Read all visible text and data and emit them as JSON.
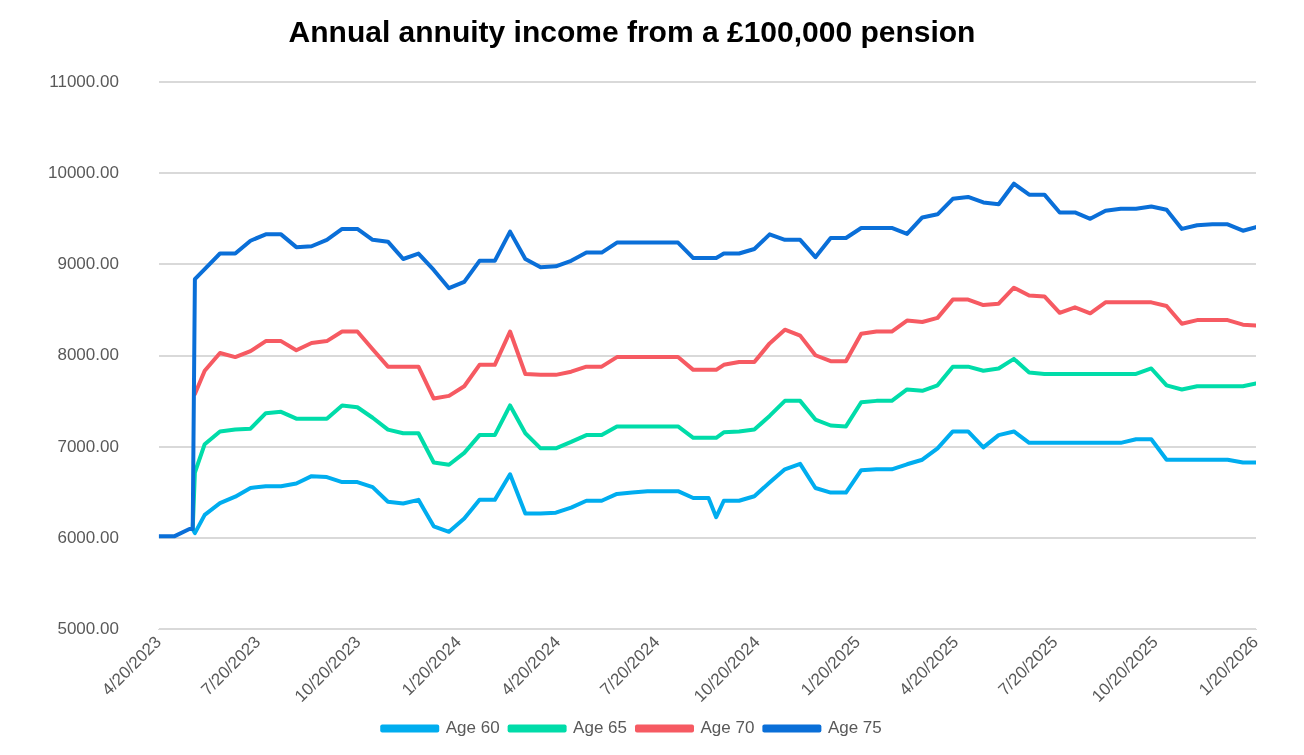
{
  "chart_data": {
    "type": "line",
    "title": "Annual annuity income from a £100,000 pension",
    "x": [
      "2023-04-20",
      "2023-05-04",
      "2023-05-18",
      "2023-05-21",
      "2023-05-23",
      "2023-06-01",
      "2023-06-15",
      "2023-06-29",
      "2023-07-13",
      "2023-07-27",
      "2023-08-10",
      "2023-08-24",
      "2023-09-07",
      "2023-09-21",
      "2023-10-05",
      "2023-10-19",
      "2023-11-02",
      "2023-11-16",
      "2023-11-30",
      "2023-12-14",
      "2023-12-28",
      "2024-01-11",
      "2024-01-25",
      "2024-02-08",
      "2024-02-22",
      "2024-03-07",
      "2024-03-21",
      "2024-04-04",
      "2024-04-18",
      "2024-05-02",
      "2024-05-16",
      "2024-05-30",
      "2024-06-13",
      "2024-06-27",
      "2024-07-11",
      "2024-07-25",
      "2024-08-08",
      "2024-08-22",
      "2024-09-05",
      "2024-09-12",
      "2024-09-19",
      "2024-10-03",
      "2024-10-17",
      "2024-10-31",
      "2024-11-14",
      "2024-11-28",
      "2024-12-12",
      "2024-12-26",
      "2025-01-09",
      "2025-01-23",
      "2025-02-06",
      "2025-02-20",
      "2025-03-06",
      "2025-03-20",
      "2025-04-03",
      "2025-04-17",
      "2025-05-01",
      "2025-05-15",
      "2025-05-29",
      "2025-06-12",
      "2025-06-26",
      "2025-07-10",
      "2025-07-24",
      "2025-08-07",
      "2025-08-21",
      "2025-09-04",
      "2025-09-18",
      "2025-10-02",
      "2025-10-16",
      "2025-10-30",
      "2025-11-13",
      "2025-11-27",
      "2025-12-11",
      "2025-12-25",
      "2026-01-08",
      "2026-01-20"
    ],
    "series": [
      {
        "name": "Age 60",
        "color": "#00adef",
        "values": [
          null,
          null,
          null,
          6100,
          6055,
          6255,
          6385,
          6455,
          6550,
          6570,
          6570,
          6600,
          6680,
          6670,
          6615,
          6615,
          6560,
          6400,
          6380,
          6420,
          6130,
          6070,
          6215,
          6420,
          6420,
          6700,
          6270,
          6270,
          6280,
          6335,
          6410,
          6410,
          6485,
          6500,
          6515,
          6515,
          6515,
          6440,
          6440,
          6230,
          6410,
          6410,
          6460,
          6610,
          6755,
          6815,
          6550,
          6500,
          6500,
          6745,
          6755,
          6755,
          6810,
          6860,
          6985,
          7170,
          7170,
          6995,
          7130,
          7170,
          7045,
          7045,
          7045,
          7045,
          7045,
          7045,
          7045,
          7085,
          7085,
          6860,
          6860,
          6860,
          6860,
          6860,
          6830,
          6830
        ]
      },
      {
        "name": "Age 65",
        "color": "#00dca9",
        "values": [
          null,
          null,
          null,
          6100,
          6720,
          7030,
          7170,
          7190,
          7200,
          7370,
          7385,
          7310,
          7310,
          7310,
          7455,
          7435,
          7320,
          7190,
          7150,
          7150,
          6830,
          6805,
          6935,
          7130,
          7130,
          7455,
          7150,
          6985,
          6985,
          7055,
          7130,
          7130,
          7225,
          7225,
          7225,
          7225,
          7225,
          7100,
          7100,
          7100,
          7160,
          7170,
          7190,
          7340,
          7505,
          7505,
          7300,
          7235,
          7225,
          7490,
          7505,
          7505,
          7630,
          7615,
          7675,
          7880,
          7880,
          7835,
          7860,
          7965,
          7815,
          7800,
          7800,
          7800,
          7800,
          7800,
          7800,
          7800,
          7860,
          7675,
          7630,
          7665,
          7665,
          7665,
          7665,
          7695
        ]
      },
      {
        "name": "Age 70",
        "color": "#f65a62",
        "values": [
          null,
          null,
          null,
          null,
          7580,
          7835,
          8030,
          7985,
          8050,
          8160,
          8160,
          8060,
          8140,
          8160,
          8265,
          8265,
          8070,
          7880,
          7880,
          7880,
          7530,
          7560,
          7665,
          7900,
          7900,
          8265,
          7800,
          7790,
          7790,
          7825,
          7880,
          7880,
          7985,
          7985,
          7985,
          7985,
          7985,
          7845,
          7845,
          7845,
          7900,
          7930,
          7930,
          8135,
          8285,
          8220,
          8005,
          7940,
          7940,
          8240,
          8265,
          8265,
          8385,
          8370,
          8415,
          8615,
          8615,
          8555,
          8570,
          8745,
          8660,
          8650,
          8470,
          8530,
          8465,
          8585,
          8585,
          8585,
          8585,
          8545,
          8350,
          8390,
          8390,
          8390,
          8340,
          8330
        ]
      },
      {
        "name": "Age 75",
        "color": "#0a6fd8",
        "values": [
          6020,
          6020,
          6100,
          6100,
          8840,
          8950,
          9120,
          9120,
          9260,
          9330,
          9330,
          9190,
          9200,
          9270,
          9390,
          9390,
          9270,
          9250,
          9060,
          9120,
          8940,
          8740,
          8810,
          9040,
          9040,
          9360,
          9060,
          8970,
          8980,
          9040,
          9130,
          9130,
          9240,
          9240,
          9240,
          9240,
          9240,
          9070,
          9070,
          9070,
          9120,
          9120,
          9170,
          9330,
          9270,
          9270,
          9080,
          9290,
          9290,
          9400,
          9400,
          9400,
          9335,
          9515,
          9550,
          9720,
          9740,
          9680,
          9660,
          9885,
          9765,
          9765,
          9570,
          9570,
          9500,
          9590,
          9610,
          9610,
          9635,
          9600,
          9390,
          9430,
          9440,
          9440,
          9370,
          9410
        ]
      }
    ],
    "xlim": [
      "2023-04-20",
      "2026-01-20"
    ],
    "xticks": [
      {
        "value": "2023-04-20",
        "label": "4/20/2023"
      },
      {
        "value": "2023-07-20",
        "label": "7/20/2023"
      },
      {
        "value": "2023-10-20",
        "label": "10/20/2023"
      },
      {
        "value": "2024-01-20",
        "label": "1/20/2024"
      },
      {
        "value": "2024-04-20",
        "label": "4/20/2024"
      },
      {
        "value": "2024-07-20",
        "label": "7/20/2024"
      },
      {
        "value": "2024-10-20",
        "label": "10/20/2024"
      },
      {
        "value": "2025-01-20",
        "label": "1/20/2025"
      },
      {
        "value": "2025-04-20",
        "label": "4/20/2025"
      },
      {
        "value": "2025-07-20",
        "label": "7/20/2025"
      },
      {
        "value": "2025-10-20",
        "label": "10/20/2025"
      },
      {
        "value": "2026-01-20",
        "label": "1/20/2026"
      }
    ],
    "ylim": [
      5000,
      11000
    ],
    "yticks": [
      {
        "value": 5000,
        "label": "5000.00"
      },
      {
        "value": 6000,
        "label": "6000.00"
      },
      {
        "value": 7000,
        "label": "7000.00"
      },
      {
        "value": 8000,
        "label": "8000.00"
      },
      {
        "value": 9000,
        "label": "9000.00"
      },
      {
        "value": 10000,
        "label": "10000.00"
      },
      {
        "value": 11000,
        "label": "11000.00"
      }
    ],
    "grid": "y",
    "legend": "bottom",
    "marker": "none",
    "line_style": "solid"
  }
}
